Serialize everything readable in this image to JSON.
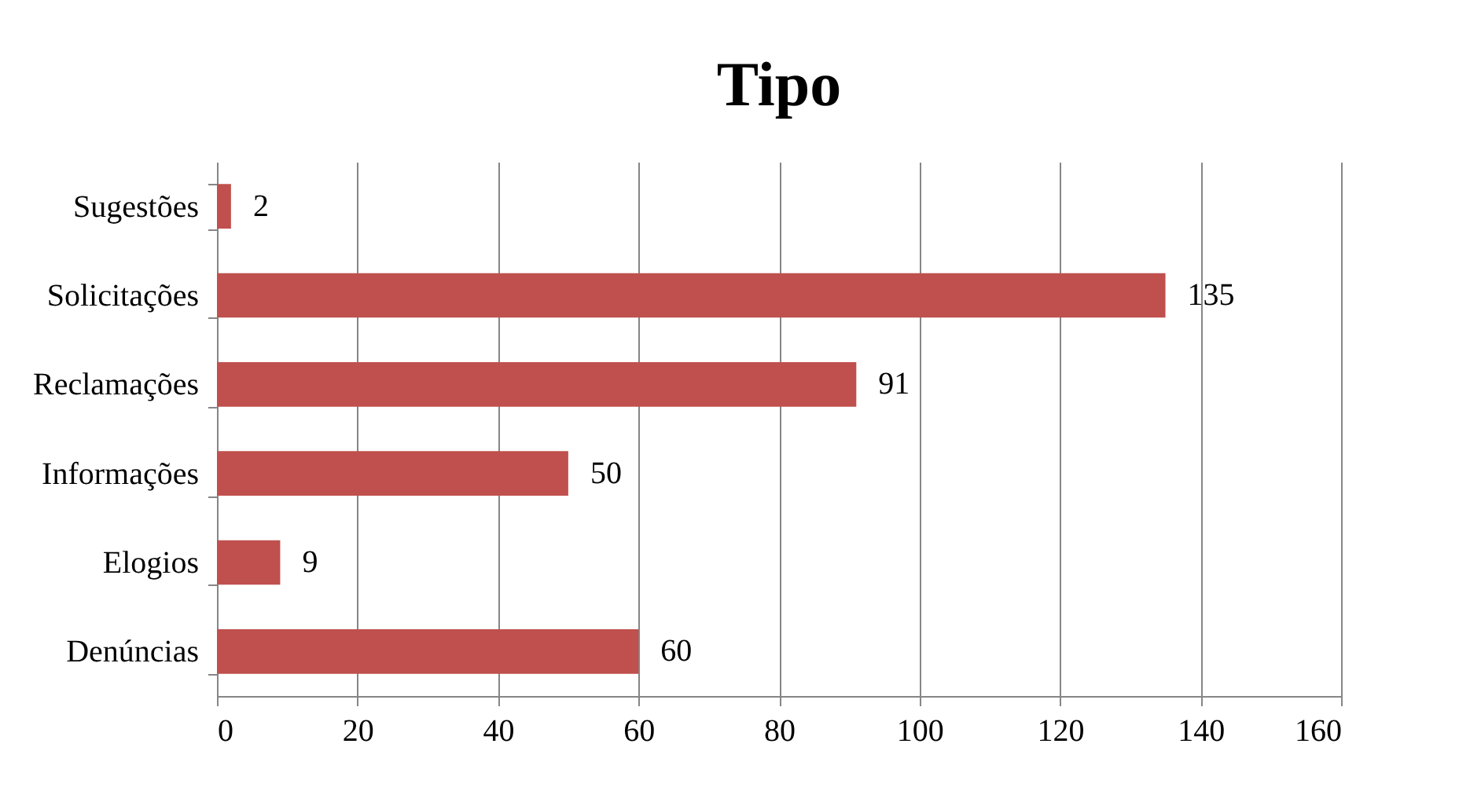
{
  "chart_data": {
    "type": "bar",
    "title": "Tipo",
    "orientation": "horizontal",
    "categories": [
      "Sugestões",
      "Solicitações",
      "Reclamações",
      "Informações",
      "Elogios",
      "Denúncias"
    ],
    "values": [
      2,
      135,
      91,
      50,
      9,
      60
    ],
    "color": "#c0504d",
    "xlim": [
      0,
      160
    ],
    "xticks": [
      0,
      20,
      40,
      60,
      80,
      100,
      120,
      140,
      160
    ],
    "grid": "x",
    "data_labels": true
  }
}
